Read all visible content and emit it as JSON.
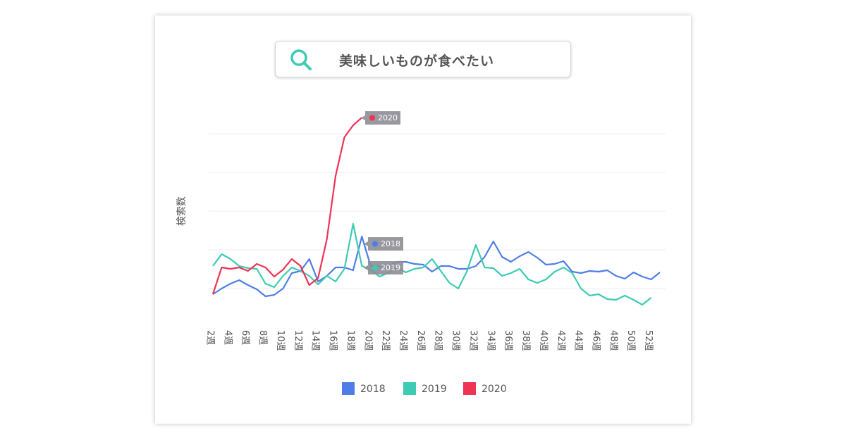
{
  "search": {
    "query": "美味しいものが食べたい"
  },
  "chart_data": {
    "type": "line",
    "y_label": "検索数",
    "categories": [
      "2週",
      null,
      "4週",
      null,
      "6週",
      null,
      "8週",
      null,
      "10週",
      null,
      "12週",
      null,
      "14週",
      null,
      "16週",
      null,
      "18週",
      null,
      "20週",
      null,
      "22週",
      null,
      "24週",
      null,
      "26週",
      null,
      "28週",
      null,
      "30週",
      null,
      "32週",
      null,
      "34週",
      null,
      "36週",
      null,
      "38週",
      null,
      "40週",
      null,
      "42週",
      null,
      "44週",
      null,
      "46週",
      null,
      "48週",
      null,
      "50週",
      null,
      "52週",
      null
    ],
    "ylim": [
      0,
      330
    ],
    "yticks": [
      55,
      110,
      165,
      220,
      275
    ],
    "grid": true,
    "series": [
      {
        "name": "2018",
        "color": "#4f7de8",
        "values": [
          47,
          55,
          62,
          67,
          60,
          54,
          44,
          46,
          55,
          77,
          80,
          97,
          65,
          73,
          85,
          85,
          81,
          129,
          87,
          87,
          87,
          93,
          93,
          90,
          89,
          79,
          87,
          87,
          83,
          83,
          87,
          100,
          122,
          100,
          93,
          101,
          107,
          99,
          89,
          90,
          94,
          79,
          77,
          80,
          79,
          81,
          73,
          69,
          78,
          72,
          68,
          78
        ]
      },
      {
        "name": "2019",
        "color": "#3ccbb4",
        "values": [
          87,
          104,
          97,
          87,
          84,
          83,
          62,
          57,
          73,
          85,
          80,
          73,
          61,
          73,
          65,
          83,
          147,
          87,
          82,
          72,
          77,
          85,
          78,
          83,
          85,
          97,
          80,
          63,
          55,
          80,
          117,
          85,
          84,
          73,
          77,
          83,
          68,
          63,
          68,
          79,
          85,
          77,
          55,
          45,
          47,
          40,
          39,
          45,
          39,
          32,
          42,
          null
        ]
      },
      {
        "name": "2020",
        "color": "#ee3355",
        "values": [
          47,
          85,
          83,
          85,
          80,
          90,
          85,
          72,
          82,
          97,
          87,
          60,
          70,
          125,
          215,
          270,
          287,
          298,
          null,
          null,
          null,
          null,
          null,
          null,
          null,
          null,
          null,
          null,
          null,
          null,
          null,
          null,
          null,
          null,
          null,
          null,
          null,
          null,
          null,
          null,
          null,
          null,
          null,
          null,
          null,
          null,
          null,
          null,
          null,
          null,
          null,
          null
        ]
      }
    ]
  }
}
